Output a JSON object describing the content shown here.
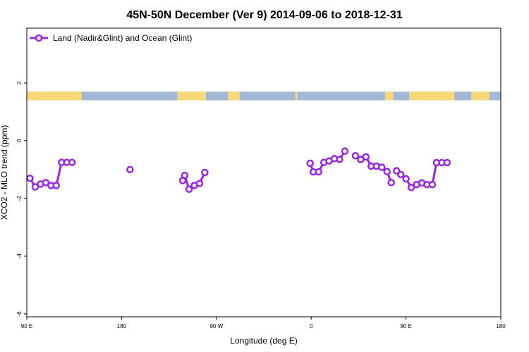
{
  "chart_data": {
    "type": "line",
    "title": "45N-50N December (Ver 9)   2014-09-06 to 2018-12-31",
    "xlabel": "Longitude (deg E)",
    "ylabel": "XCO2 - MLO trend (ppm)",
    "xlim": [
      90,
      540
    ],
    "ylim": [
      -6.1,
      3.9
    ],
    "x_ticks": [
      {
        "value": 90,
        "label": "90 E"
      },
      {
        "value": 180,
        "label": "180"
      },
      {
        "value": 270,
        "label": "90 W"
      },
      {
        "value": 360,
        "label": "0"
      },
      {
        "value": 450,
        "label": "90 E"
      },
      {
        "value": 540,
        "label": "180"
      }
    ],
    "y_ticks": [
      {
        "value": -6,
        "label": "-6"
      },
      {
        "value": -4,
        "label": "-4"
      },
      {
        "value": -2,
        "label": "-2"
      },
      {
        "value": 0,
        "label": "0"
      },
      {
        "value": 2,
        "label": "2"
      }
    ],
    "grid": false,
    "legend_position": "top-left",
    "series_color": "#9a27e0",
    "land_color": "#fad87a",
    "ocean_color": "#a3b8d6",
    "map_strip": {
      "y_min": 1.4,
      "y_max": 1.7
    },
    "map_land_ranges": [
      [
        90,
        142
      ],
      [
        233,
        260
      ],
      [
        281,
        292
      ],
      [
        345,
        347
      ],
      [
        430,
        438
      ],
      [
        453,
        496
      ],
      [
        512,
        529
      ]
    ],
    "series": [
      {
        "name": "Land (Nadir&Glint) and Ocean (Glint)",
        "segments": [
          [
            [
              93,
              -1.3
            ],
            [
              98,
              -1.6
            ],
            [
              103,
              -1.5
            ],
            [
              108,
              -1.45
            ],
            [
              113,
              -1.55
            ],
            [
              118,
              -1.55
            ],
            [
              123,
              -0.75
            ],
            [
              128,
              -0.75
            ],
            [
              133,
              -0.75
            ]
          ],
          [
            [
              188,
              -1.0
            ]
          ],
          [
            [
              238,
              -1.38
            ],
            [
              240,
              -1.2
            ],
            [
              244,
              -1.68
            ],
            [
              249,
              -1.55
            ],
            [
              254,
              -1.48
            ],
            [
              259,
              -1.1
            ]
          ],
          [
            [
              359,
              -0.78
            ],
            [
              362,
              -1.08
            ],
            [
              367,
              -1.08
            ],
            [
              372,
              -0.75
            ],
            [
              377,
              -0.7
            ],
            [
              382,
              -0.62
            ],
            [
              387,
              -0.65
            ],
            [
              392,
              -0.36
            ]
          ],
          [
            [
              402,
              -0.52
            ],
            [
              407,
              -0.65
            ],
            [
              412,
              -0.56
            ],
            [
              417,
              -0.88
            ],
            [
              422,
              -0.88
            ],
            [
              427,
              -0.92
            ],
            [
              432,
              -1.07
            ],
            [
              436,
              -1.45
            ]
          ],
          [
            [
              441,
              -1.04
            ],
            [
              445,
              -1.17
            ],
            [
              450,
              -1.32
            ],
            [
              455,
              -1.62
            ],
            [
              460,
              -1.52
            ],
            [
              465,
              -1.46
            ],
            [
              470,
              -1.52
            ],
            [
              475,
              -1.52
            ],
            [
              479,
              -0.76
            ],
            [
              484,
              -0.76
            ],
            [
              489,
              -0.76
            ]
          ]
        ]
      }
    ]
  }
}
